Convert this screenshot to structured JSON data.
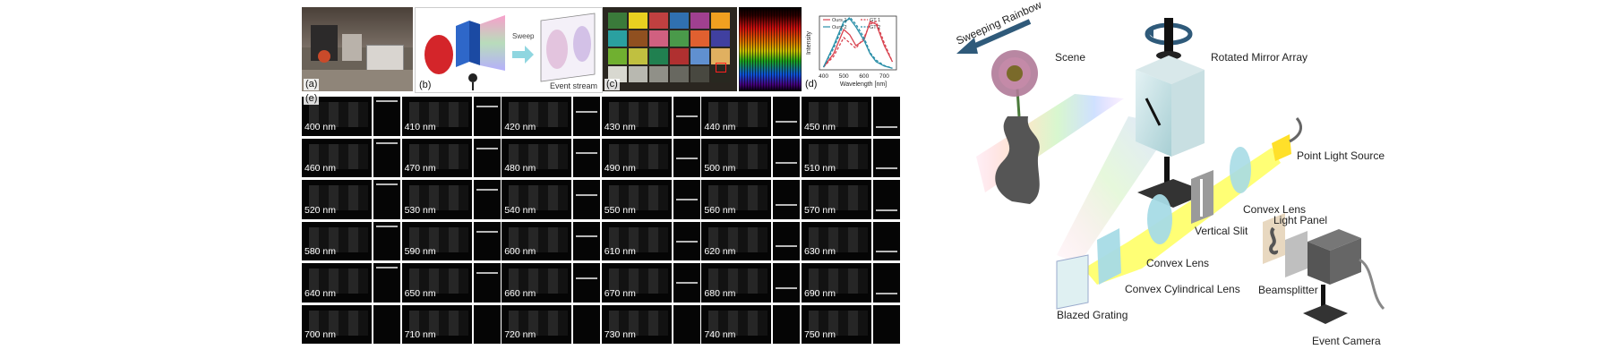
{
  "panel_labels": {
    "a": "(a)",
    "b": "(b)",
    "c": "(c)",
    "d": "(d)",
    "e": "(e)"
  },
  "panel_b": {
    "sweep_label": "Sweep",
    "stream_label": "Event stream"
  },
  "panel_d": {
    "chart_data": {
      "type": "line",
      "xlabel": "Wavelength [nm]",
      "ylabel": "Intensity",
      "xlim": [
        380,
        760
      ],
      "xticks": [
        400,
        500,
        600,
        700
      ],
      "legend_position": "top",
      "series": [
        {
          "name": "Ours 1",
          "color": "#d9434f",
          "dash": false,
          "x": [
            400,
            450,
            500,
            530,
            560,
            600,
            630,
            660,
            700,
            740
          ],
          "y": [
            0.05,
            0.3,
            0.75,
            0.65,
            0.45,
            0.55,
            0.9,
            0.85,
            0.45,
            0.15
          ]
        },
        {
          "name": "GT 1",
          "color": "#d9434f",
          "dash": true,
          "x": [
            400,
            450,
            500,
            530,
            560,
            600,
            630,
            660,
            700,
            740
          ],
          "y": [
            0.05,
            0.25,
            0.6,
            0.5,
            0.4,
            0.6,
            0.85,
            0.9,
            0.5,
            0.15
          ]
        },
        {
          "name": "Ours 2",
          "color": "#2a8fa8",
          "dash": false,
          "x": [
            400,
            450,
            500,
            530,
            560,
            600,
            630,
            660,
            700,
            740
          ],
          "y": [
            0.05,
            0.45,
            0.9,
            0.95,
            0.8,
            0.55,
            0.3,
            0.15,
            0.07,
            0.03
          ]
        },
        {
          "name": "GT 2",
          "color": "#2a8fa8",
          "dash": true,
          "x": [
            400,
            450,
            500,
            530,
            560,
            600,
            630,
            660,
            700,
            740
          ],
          "y": [
            0.05,
            0.4,
            0.85,
            0.98,
            0.85,
            0.6,
            0.32,
            0.18,
            0.08,
            0.03
          ]
        }
      ]
    }
  },
  "wavelength_tiles": [
    "400 nm",
    "410 nm",
    "420 nm",
    "430 nm",
    "440 nm",
    "450 nm",
    "460 nm",
    "470 nm",
    "480 nm",
    "490 nm",
    "500 nm",
    "510 nm",
    "520 nm",
    "530 nm",
    "540 nm",
    "550 nm",
    "560 nm",
    "570 nm",
    "580 nm",
    "590 nm",
    "600 nm",
    "610 nm",
    "620 nm",
    "630 nm",
    "640 nm",
    "650 nm",
    "660 nm",
    "670 nm",
    "680 nm",
    "690 nm",
    "700 nm",
    "710 nm",
    "720 nm",
    "730 nm",
    "740 nm",
    "750 nm"
  ],
  "diagram": {
    "sweeping_rainbow": "Sweeping Rainbow",
    "scene": "Scene",
    "rotated_mirror_array": "Rotated Mirror Array",
    "point_light_source": "Point Light Source",
    "convex_lens_1": "Convex Lens",
    "vertical_slit": "Vertical Slit",
    "light_panel": "Light Panel",
    "convex_lens_2": "Convex Lens",
    "beamsplitter": "Beamsplitter",
    "convex_cylindrical_lens": "Convex Cylindrical Lens",
    "blazed_grating": "Blazed Grating",
    "event_camera": "Event Camera"
  },
  "colors": {
    "arrow": "#2f5a7a",
    "rainbow_start": "#ff6f9f",
    "light_beam": "#ffff66",
    "lens": "#a7dbe6",
    "box": "#cfe7ea"
  }
}
